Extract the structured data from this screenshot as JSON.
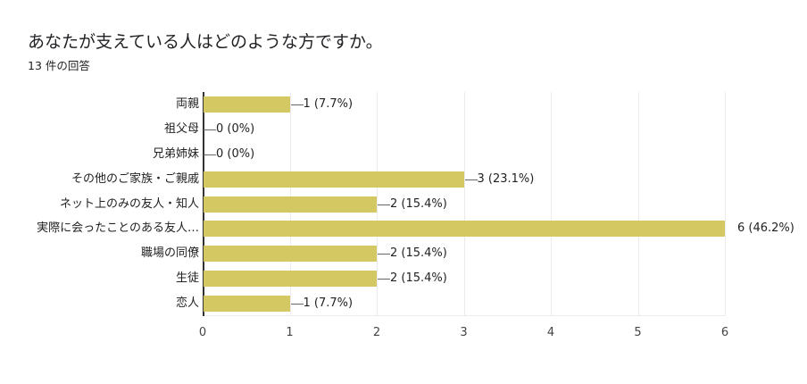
{
  "header": {
    "title": "あなたが支えている人はどのような方ですか。",
    "subtitle": "13 件の回答"
  },
  "chart_data": {
    "type": "bar",
    "orientation": "horizontal",
    "title": "あなたが支えている人はどのような方ですか。",
    "subtitle": "13 件の回答",
    "xlabel": "",
    "ylabel": "",
    "xlim": [
      0,
      6
    ],
    "grid": true,
    "legend": null,
    "bar_color": "#d4c862",
    "categories": [
      "両親",
      "祖父母",
      "兄弟姉妹",
      "その他のご家族・ご親戚",
      "ネット上のみの友人・知人",
      "実際に会ったことのある友人…",
      "職場の同僚",
      "生徒",
      "恋人"
    ],
    "values": [
      1,
      0,
      0,
      3,
      2,
      6,
      2,
      2,
      1
    ],
    "percentages": [
      "7.7%",
      "0%",
      "0%",
      "23.1%",
      "15.4%",
      "46.2%",
      "15.4%",
      "15.4%",
      "7.7%"
    ],
    "data_labels": [
      "1 (7.7%)",
      "0 (0%)",
      "0 (0%)",
      "3 (23.1%)",
      "2 (15.4%)",
      "6 (46.2%)",
      "2 (15.4%)",
      "2 (15.4%)",
      "1 (7.7%)"
    ],
    "x_ticks": [
      "0",
      "1",
      "2",
      "3",
      "4",
      "5",
      "6"
    ]
  }
}
